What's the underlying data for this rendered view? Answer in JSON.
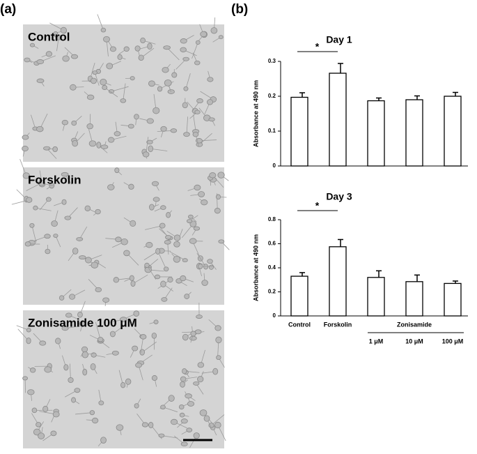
{
  "panel_a": {
    "label": "(a)",
    "images": [
      "Control",
      "Forskolin",
      "Zonisamide 100 μM"
    ]
  },
  "panel_b": {
    "label": "(b)"
  },
  "chart_data": [
    {
      "type": "bar",
      "title": "Day 1",
      "y_label": "Absorbance at 490 nm",
      "values": [
        0.197,
        0.266,
        0.187,
        0.19,
        0.2
      ],
      "errors": [
        0.013,
        0.028,
        0.008,
        0.011,
        0.011
      ],
      "color": "#ffffff",
      "ylim": [
        0,
        0.3
      ],
      "yticks": [
        0,
        0.1,
        0.2,
        0.3
      ],
      "significance": "*"
    },
    {
      "type": "bar",
      "title": "Day 3",
      "y_label": "Absorbance at 490 nm",
      "categories": [
        "Control",
        "Forskolin",
        "1 μM",
        "10 μM",
        "100 μM"
      ],
      "group_label": "Zonisamide",
      "values": [
        0.33,
        0.575,
        0.32,
        0.285,
        0.27
      ],
      "errors": [
        0.03,
        0.06,
        0.055,
        0.055,
        0.02
      ],
      "color": "#ffffff",
      "ylim": [
        0,
        0.8
      ],
      "yticks": [
        0,
        0.2,
        0.4,
        0.6,
        0.8
      ],
      "significance": "*"
    }
  ]
}
